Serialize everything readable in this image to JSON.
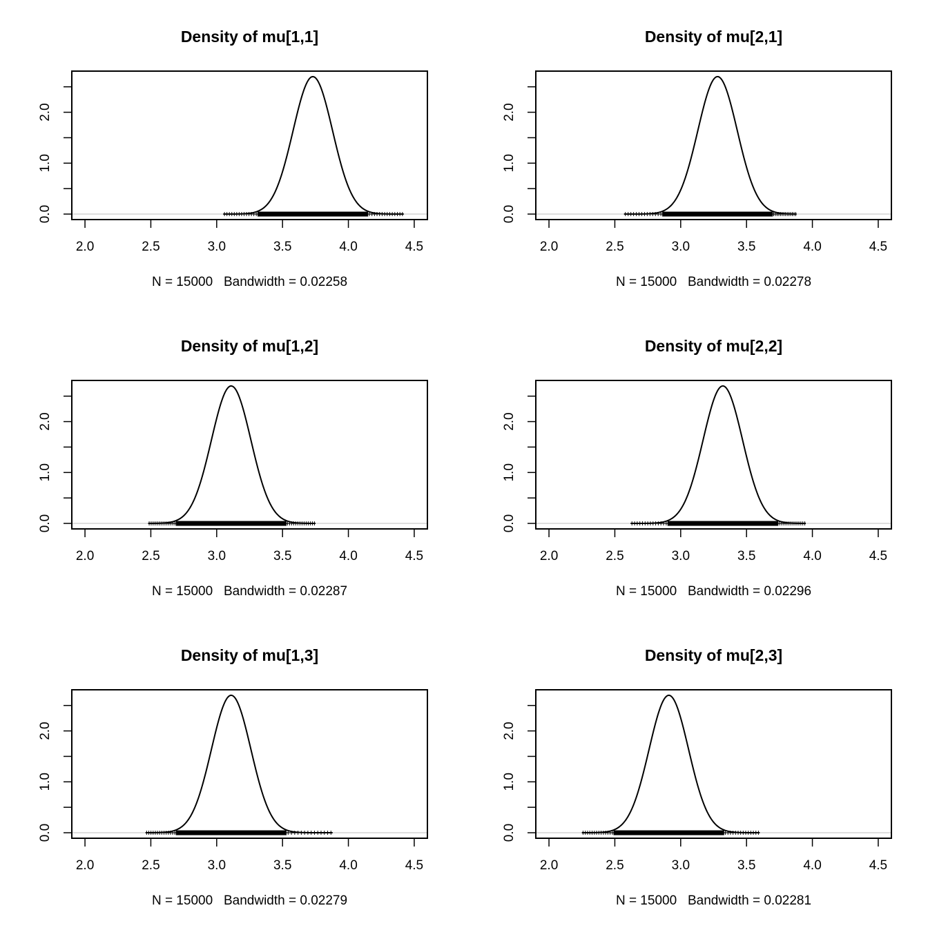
{
  "chart_data": [
    {
      "type": "line",
      "title": "Density of mu[1,1]",
      "xlabel": "N = 15000   Bandwidth = 0.02258",
      "mean": 3.73,
      "sd": 0.15,
      "peak": 2.7,
      "rug_range": [
        3.05,
        4.42
      ],
      "xlim": [
        2.0,
        4.5
      ],
      "ylim": [
        0.0,
        2.7
      ],
      "xticks": [
        "2.0",
        "2.5",
        "3.0",
        "3.5",
        "4.0",
        "4.5"
      ],
      "yticks": [
        "0.0",
        "1.0",
        "2.0"
      ]
    },
    {
      "type": "line",
      "title": "Density of mu[2,1]",
      "xlabel": "N = 15000   Bandwidth = 0.02278",
      "mean": 3.28,
      "sd": 0.15,
      "peak": 2.7,
      "rug_range": [
        2.57,
        3.88
      ],
      "xlim": [
        2.0,
        4.5
      ],
      "ylim": [
        0.0,
        2.7
      ],
      "xticks": [
        "2.0",
        "2.5",
        "3.0",
        "3.5",
        "4.0",
        "4.5"
      ],
      "yticks": [
        "0.0",
        "1.0",
        "2.0"
      ]
    },
    {
      "type": "line",
      "title": "Density of mu[1,2]",
      "xlabel": "N = 15000   Bandwidth = 0.02287",
      "mean": 3.11,
      "sd": 0.15,
      "peak": 2.7,
      "rug_range": [
        2.48,
        3.75
      ],
      "xlim": [
        2.0,
        4.5
      ],
      "ylim": [
        0.0,
        2.7
      ],
      "xticks": [
        "2.0",
        "2.5",
        "3.0",
        "3.5",
        "4.0",
        "4.5"
      ],
      "yticks": [
        "0.0",
        "1.0",
        "2.0"
      ]
    },
    {
      "type": "line",
      "title": "Density of mu[2,2]",
      "xlabel": "N = 15000   Bandwidth = 0.02296",
      "mean": 3.32,
      "sd": 0.15,
      "peak": 2.7,
      "rug_range": [
        2.62,
        3.95
      ],
      "xlim": [
        2.0,
        4.5
      ],
      "ylim": [
        0.0,
        2.7
      ],
      "xticks": [
        "2.0",
        "2.5",
        "3.0",
        "3.5",
        "4.0",
        "4.5"
      ],
      "yticks": [
        "0.0",
        "1.0",
        "2.0"
      ]
    },
    {
      "type": "line",
      "title": "Density of mu[1,3]",
      "xlabel": "N = 15000   Bandwidth = 0.02279",
      "mean": 3.11,
      "sd": 0.15,
      "peak": 2.7,
      "rug_range": [
        2.46,
        3.88
      ],
      "xlim": [
        2.0,
        4.5
      ],
      "ylim": [
        0.0,
        2.7
      ],
      "xticks": [
        "2.0",
        "2.5",
        "3.0",
        "3.5",
        "4.0",
        "4.5"
      ],
      "yticks": [
        "0.0",
        "1.0",
        "2.0"
      ]
    },
    {
      "type": "line",
      "title": "Density of mu[2,3]",
      "xlabel": "N = 15000   Bandwidth = 0.02281",
      "mean": 2.91,
      "sd": 0.15,
      "peak": 2.7,
      "rug_range": [
        2.25,
        3.6
      ],
      "xlim": [
        2.0,
        4.5
      ],
      "ylim": [
        0.0,
        2.7
      ],
      "xticks": [
        "2.0",
        "2.5",
        "3.0",
        "3.5",
        "4.0",
        "4.5"
      ],
      "yticks": [
        "0.0",
        "1.0",
        "2.0"
      ]
    }
  ]
}
